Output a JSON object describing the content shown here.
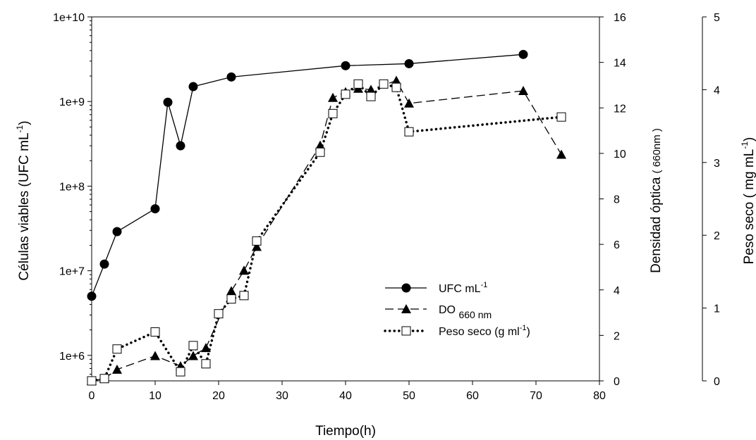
{
  "chart_data": {
    "type": "line",
    "xlabel": "Tiempo(h)",
    "x_ticks": [
      "0",
      "10",
      "20",
      "30",
      "40",
      "50",
      "60",
      "70",
      "80"
    ],
    "xlim": [
      0,
      80
    ],
    "axes": {
      "left": {
        "label_main": "Células viables (UFC mL",
        "label_sup": "-1",
        "label_close": ")",
        "scale": "log",
        "ylim": [
          500000,
          10000000000
        ],
        "ticks": [
          {
            "value": 1000000,
            "label": "1e+6"
          },
          {
            "value": 10000000,
            "label": "1e+7"
          },
          {
            "value": 100000000,
            "label": "1e+8"
          },
          {
            "value": 1000000000,
            "label": "1e+9"
          },
          {
            "value": 10000000000,
            "label": "1e+10"
          }
        ]
      },
      "right1": {
        "label_main": "Densidad óptica",
        "label_paren": "( 660nm )",
        "ylim": [
          0,
          16
        ],
        "ticks": [
          "0",
          "2",
          "4",
          "6",
          "8",
          "10",
          "12",
          "14",
          "16"
        ]
      },
      "right2": {
        "label_main": "Peso seco",
        "label_open": "( mg mL",
        "label_sup": "-1",
        "label_close": ")",
        "ylim": [
          0,
          5
        ],
        "ticks": [
          "0",
          "1",
          "2",
          "3",
          "4",
          "5"
        ]
      }
    },
    "series": [
      {
        "name": "UFC mL",
        "name_sup": "-1",
        "axis": "left",
        "marker": "circle",
        "line": "solid",
        "x": [
          0,
          2,
          4,
          10,
          12,
          14,
          16,
          22,
          40,
          50,
          68
        ],
        "y": [
          5000000,
          12000000,
          29000000,
          54000000,
          980000000,
          300000000,
          1500000000,
          1950000000,
          2650000000,
          2800000000,
          3600000000
        ]
      },
      {
        "name": "DO",
        "name_sub": "660 nm",
        "axis": "right1",
        "marker": "triangle",
        "line": "dashed",
        "x": [
          0,
          2,
          4,
          10,
          14,
          16,
          18,
          22,
          24,
          26,
          36,
          38,
          40,
          42,
          44,
          48,
          50,
          68,
          74
        ],
        "y": [
          0,
          0.1,
          0.5,
          1.1,
          0.65,
          1.1,
          1.45,
          3.95,
          4.85,
          5.9,
          10.35,
          12.45,
          12.7,
          12.85,
          12.8,
          13.2,
          12.2,
          12.75,
          9.95
        ]
      },
      {
        "name": "Peso seco (g ml",
        "name_sup": "-1",
        "name_close": ")",
        "axis": "right1",
        "marker": "square",
        "line": "dotted",
        "x": [
          0,
          2,
          4,
          10,
          14,
          16,
          18,
          20,
          22,
          24,
          26,
          36,
          38,
          40,
          42,
          44,
          46,
          48,
          50,
          74
        ],
        "y": [
          0,
          0.1,
          1.4,
          2.15,
          0.4,
          1.55,
          0.75,
          2.95,
          3.6,
          3.75,
          6.15,
          10.05,
          11.75,
          12.6,
          13.05,
          12.5,
          13.05,
          12.9,
          10.95,
          11.6
        ]
      }
    ]
  }
}
